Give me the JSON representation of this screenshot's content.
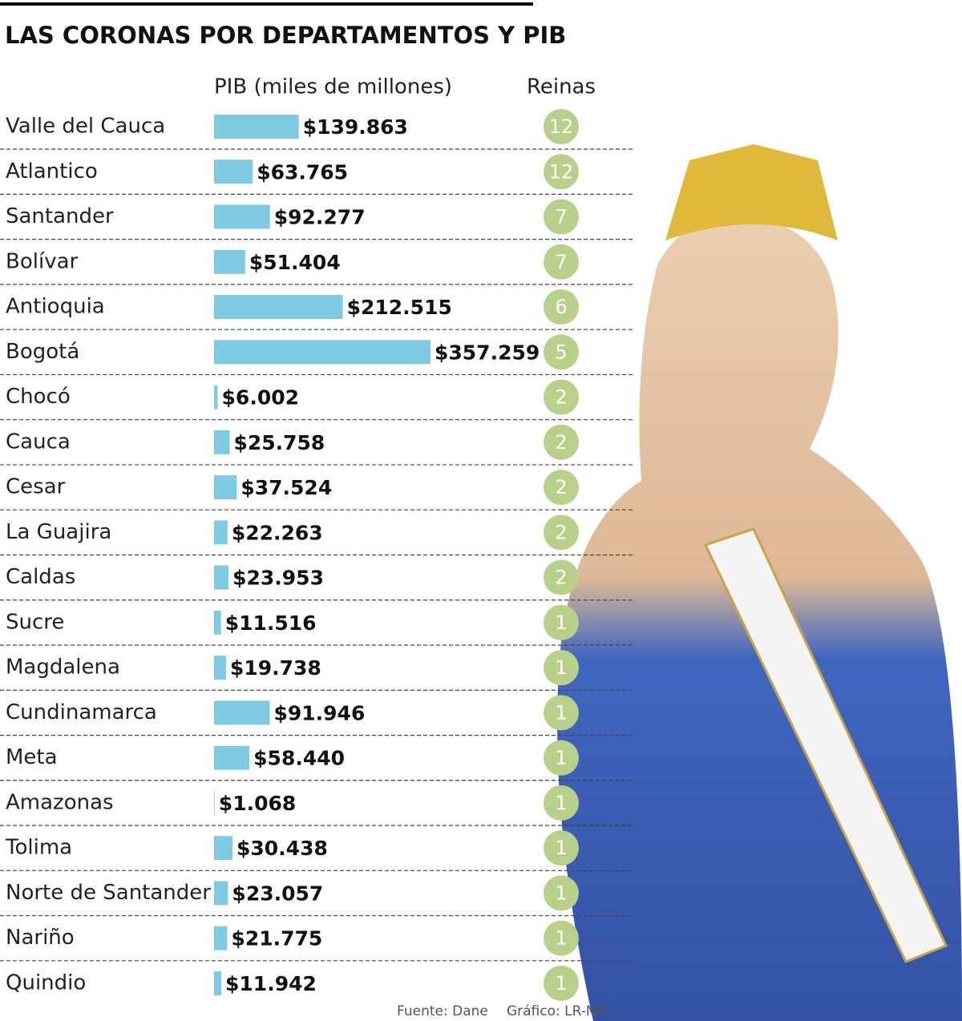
{
  "chart_data": {
    "type": "bar",
    "title": "LAS CORONAS POR DEPARTAMENTOS Y PIB",
    "value_header": "PIB (miles de millones)",
    "count_header": "Reinas",
    "categories": [
      "Valle del Cauca",
      "Atlantico",
      "Santander",
      "Bolívar",
      "Antioquia",
      "Bogotá",
      "Chocó",
      "Cauca",
      "Cesar",
      "La Guajira",
      "Caldas",
      "Sucre",
      "Magdalena",
      "Cundinamarca",
      "Meta",
      "Amazonas",
      "Tolima",
      "Norte de Santander",
      "Nariño",
      "Quindio"
    ],
    "values": [
      139863,
      63765,
      92277,
      51404,
      212515,
      357259,
      6002,
      25758,
      37524,
      22263,
      23953,
      11516,
      19738,
      91946,
      58440,
      1068,
      30438,
      23057,
      21775,
      11942
    ],
    "value_labels": [
      "$139.863",
      "$63.765",
      "$92.277",
      "$51.404",
      "$212.515",
      "$357.259",
      "$6.002",
      "$25.758",
      "$37.524",
      "$22.263",
      "$23.953",
      "$11.516",
      "$19.738",
      "$91.946",
      "$58.440",
      "$1.068",
      "$30.438",
      "$23.057",
      "$21.775",
      "$11.942"
    ],
    "counts": [
      12,
      12,
      7,
      7,
      6,
      5,
      2,
      2,
      2,
      2,
      2,
      1,
      1,
      1,
      1,
      1,
      1,
      1,
      1,
      1
    ],
    "color": "#7fcbe3",
    "count_color": "#b8d08a",
    "source": "Fuente: Dane",
    "credit": "Gráfico: LR-MN"
  }
}
